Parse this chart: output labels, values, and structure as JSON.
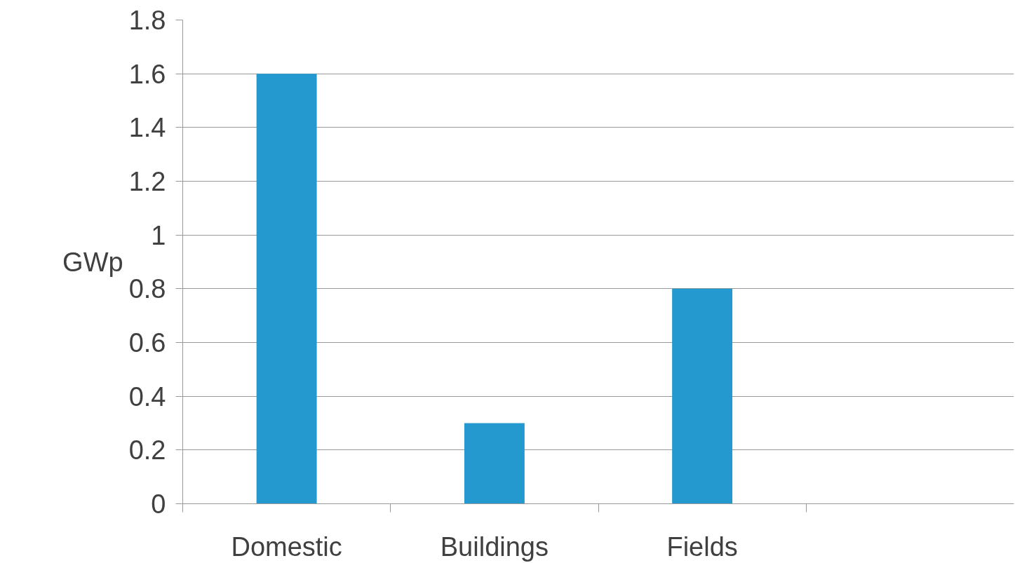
{
  "chart_data": {
    "type": "bar",
    "ylabel": "GWp",
    "categories": [
      "Domestic",
      "Buildings",
      "Fields",
      null
    ],
    "values": [
      1.6,
      0.3,
      0.8,
      null
    ],
    "color": "#2499d0",
    "ylim": [
      0,
      1.8
    ],
    "yticks": [
      0,
      0.2,
      0.4,
      0.6,
      0.8,
      1,
      1.2,
      1.4,
      1.6,
      1.8
    ],
    "grid": "y"
  }
}
